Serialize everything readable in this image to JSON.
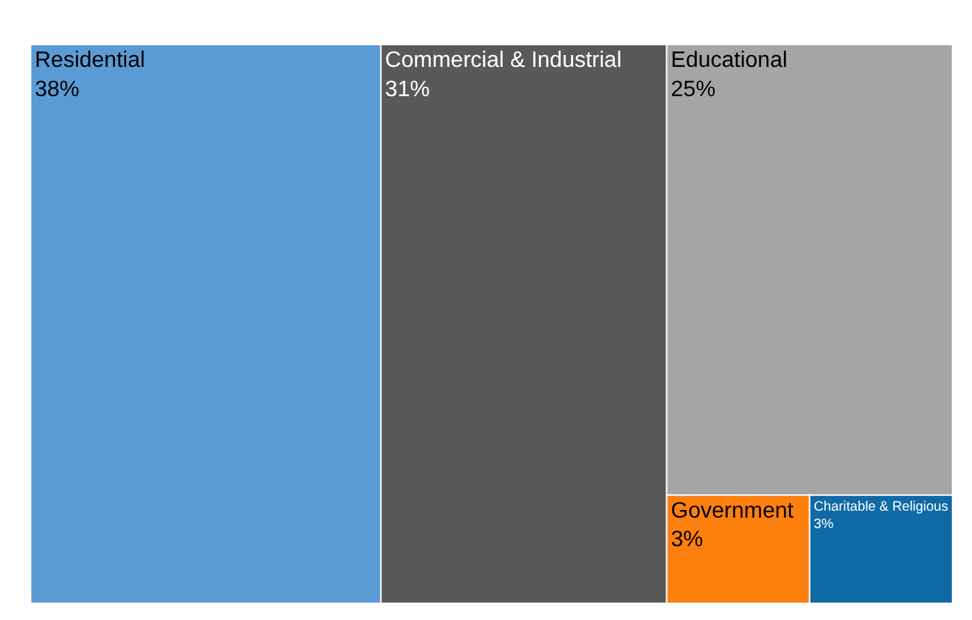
{
  "chart_data": {
    "type": "other",
    "categories": [
      "Residential",
      "Commercial & Industrial",
      "Educational",
      "Government",
      "Charitable & Religious"
    ],
    "values": [
      38,
      31,
      25,
      3,
      3
    ],
    "value_labels": [
      "38%",
      "31%",
      "25%",
      "3%",
      "3%"
    ],
    "colors": [
      "#5b9bd5",
      "#595959",
      "#a5a5a5",
      "#fd7f0e",
      "#0f6aa6"
    ]
  }
}
